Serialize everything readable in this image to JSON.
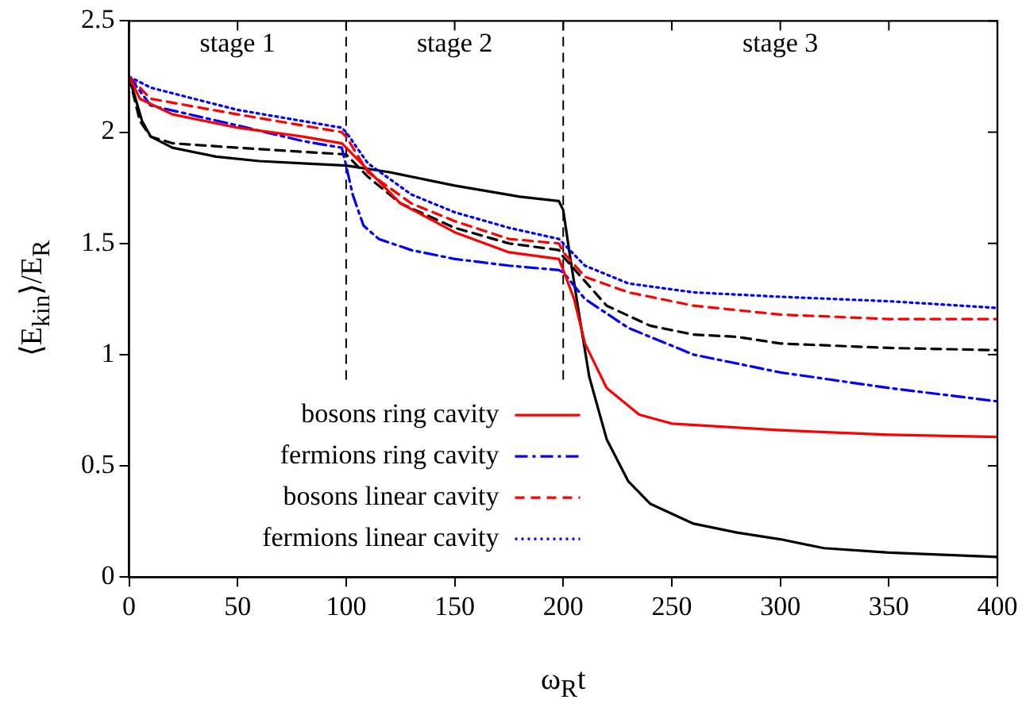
{
  "chart_data": {
    "type": "line",
    "xlabel": "ω$_{R}$t",
    "ylabel": "⟨E$_{kin}$⟩/E$_{R}$",
    "xlim": [
      0,
      400
    ],
    "xticks": [
      0,
      50,
      100,
      150,
      200,
      250,
      300,
      350,
      400
    ],
    "ylim": [
      0,
      2.5
    ],
    "yticks": [
      0,
      0.5,
      1,
      1.5,
      2,
      2.5
    ],
    "grid": false,
    "legend": "bottom left",
    "marker": "none",
    "ref_lines": [
      {
        "axis": "x",
        "value": 100,
        "color": "#000000",
        "line_style": "dashed"
      },
      {
        "axis": "x",
        "value": 200,
        "color": "#000000",
        "line_style": "dashed"
      }
    ],
    "annotations": [
      "stage 1",
      "stage 2",
      "stage 3"
    ],
    "series": [
      {
        "name": "bosons ring cavity",
        "color": "#ff0000",
        "line_style": "solid",
        "x": [
          0,
          5,
          20,
          50,
          80,
          98,
          100,
          110,
          125,
          150,
          175,
          198,
          200,
          205,
          210,
          220,
          235,
          250,
          300,
          350,
          400
        ],
        "values": [
          2.25,
          2.15,
          2.08,
          2.02,
          1.98,
          1.95,
          1.93,
          1.83,
          1.68,
          1.55,
          1.46,
          1.43,
          1.38,
          1.25,
          1.05,
          0.85,
          0.73,
          0.69,
          0.66,
          0.64,
          0.63
        ]
      },
      {
        "name": "fermions ring cavity",
        "color": "#0000ff",
        "line_style": "dashdot",
        "x": [
          0,
          10,
          50,
          80,
          98,
          100,
          103,
          108,
          115,
          130,
          150,
          175,
          198,
          200,
          210,
          230,
          260,
          300,
          350,
          400
        ],
        "values": [
          2.25,
          2.12,
          2.03,
          1.96,
          1.93,
          1.85,
          1.72,
          1.58,
          1.52,
          1.47,
          1.43,
          1.4,
          1.38,
          1.37,
          1.25,
          1.12,
          1.0,
          0.92,
          0.85,
          0.79
        ]
      },
      {
        "name": "bosons linear cavity",
        "color": "#ff0000",
        "line_style": "dashed",
        "x": [
          0,
          10,
          50,
          98,
          100,
          110,
          130,
          150,
          175,
          198,
          200,
          210,
          230,
          260,
          300,
          350,
          400
        ],
        "values": [
          2.25,
          2.15,
          2.08,
          2.0,
          1.98,
          1.82,
          1.68,
          1.6,
          1.52,
          1.5,
          1.46,
          1.35,
          1.28,
          1.22,
          1.18,
          1.16,
          1.16
        ]
      },
      {
        "name": "fermions linear cavity",
        "color": "#0000ff",
        "line_style": "dotted",
        "x": [
          0,
          10,
          50,
          98,
          100,
          110,
          130,
          150,
          175,
          198,
          200,
          210,
          230,
          260,
          300,
          350,
          400
        ],
        "values": [
          2.25,
          2.2,
          2.1,
          2.02,
          2.0,
          1.86,
          1.72,
          1.64,
          1.57,
          1.52,
          1.5,
          1.4,
          1.32,
          1.28,
          1.26,
          1.24,
          1.21
        ]
      },
      {
        "color": "#000000",
        "line_style": "solid",
        "x": [
          0,
          3,
          6,
          10,
          20,
          40,
          60,
          80,
          100,
          120,
          150,
          180,
          198,
          200,
          203,
          207,
          212,
          220,
          230,
          240,
          260,
          280,
          300,
          320,
          350,
          400
        ],
        "values": [
          2.25,
          2.15,
          2.05,
          1.98,
          1.93,
          1.89,
          1.87,
          1.86,
          1.85,
          1.82,
          1.76,
          1.71,
          1.69,
          1.65,
          1.45,
          1.2,
          0.9,
          0.62,
          0.43,
          0.33,
          0.24,
          0.2,
          0.17,
          0.13,
          0.11,
          0.09
        ]
      },
      {
        "color": "#000000",
        "line_style": "dashed",
        "x": [
          0,
          5,
          10,
          20,
          50,
          100,
          110,
          125,
          150,
          175,
          198,
          200,
          210,
          220,
          240,
          260,
          280,
          300,
          350,
          400
        ],
        "values": [
          2.25,
          2.05,
          1.98,
          1.95,
          1.93,
          1.9,
          1.8,
          1.68,
          1.57,
          1.5,
          1.47,
          1.44,
          1.33,
          1.22,
          1.13,
          1.09,
          1.08,
          1.05,
          1.03,
          1.02
        ]
      }
    ]
  }
}
